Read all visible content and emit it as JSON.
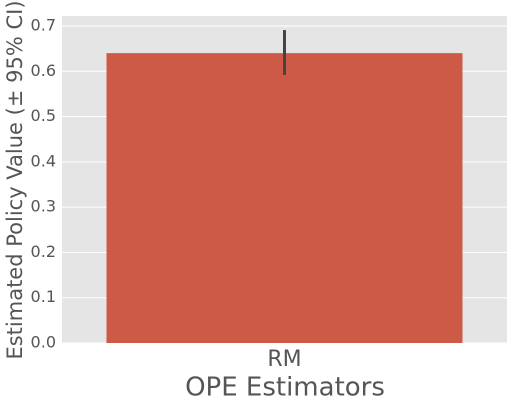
{
  "chart_data": {
    "type": "bar",
    "xlabel": "OPE Estimators",
    "ylabel": "Estimated Policy Value (± 95% CI)",
    "categories": [
      "RM"
    ],
    "values": [
      0.64
    ],
    "ci_low": [
      0.592
    ],
    "ci_high": [
      0.691
    ],
    "color": "#cc5a47",
    "error_color": "#444444",
    "ylim": [
      0,
      0.722
    ],
    "yticks": [
      {
        "value": 0,
        "label": "0.0"
      },
      0.1,
      0.2,
      0.3,
      0.4,
      0.5,
      0.6,
      0.7
    ],
    "grid": true
  }
}
